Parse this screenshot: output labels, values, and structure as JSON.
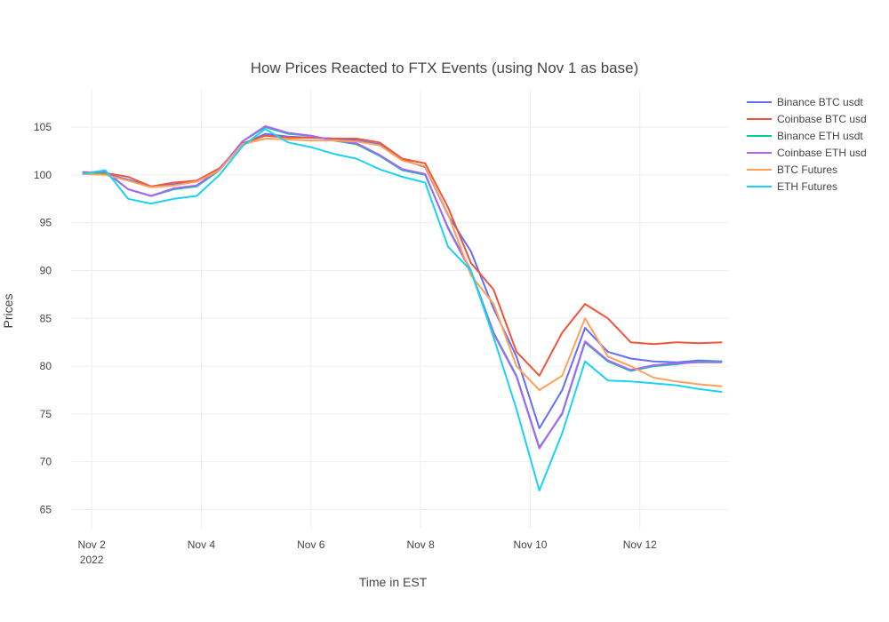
{
  "chart_data": {
    "type": "line",
    "title": "How Prices Reacted to FTX Events (using Nov 1 as base)",
    "xlabel": "Time in EST",
    "ylabel": "Prices",
    "xlim": [
      "2022-11-01T15:00",
      "2022-11-13T15:00"
    ],
    "ylim": [
      63,
      109
    ],
    "x_ticks": [
      {
        "value": "2022-11-02",
        "label": "Nov 2",
        "sublabel": "2022"
      },
      {
        "value": "2022-11-04",
        "label": "Nov 4",
        "sublabel": ""
      },
      {
        "value": "2022-11-06",
        "label": "Nov 6",
        "sublabel": ""
      },
      {
        "value": "2022-11-08",
        "label": "Nov 8",
        "sublabel": ""
      },
      {
        "value": "2022-11-10",
        "label": "Nov 10",
        "sublabel": ""
      },
      {
        "value": "2022-11-12",
        "label": "Nov 12",
        "sublabel": ""
      }
    ],
    "y_ticks": [
      65,
      70,
      75,
      80,
      85,
      90,
      95,
      100,
      105
    ],
    "grid": true,
    "legend_position": "top-right",
    "x": [
      "2022-11-01T20:00",
      "2022-11-02T06:00",
      "2022-11-02T16:00",
      "2022-11-03T02:00",
      "2022-11-03T12:00",
      "2022-11-03T22:00",
      "2022-11-04T08:00",
      "2022-11-04T18:00",
      "2022-11-05T04:00",
      "2022-11-05T14:00",
      "2022-11-06T00:00",
      "2022-11-06T10:00",
      "2022-11-06T20:00",
      "2022-11-07T06:00",
      "2022-11-07T16:00",
      "2022-11-08T02:00",
      "2022-11-08T12:00",
      "2022-11-08T22:00",
      "2022-11-09T08:00",
      "2022-11-09T18:00",
      "2022-11-10T04:00",
      "2022-11-10T14:00",
      "2022-11-11T00:00",
      "2022-11-11T10:00",
      "2022-11-11T20:00",
      "2022-11-12T06:00",
      "2022-11-12T16:00",
      "2022-11-13T02:00",
      "2022-11-13T12:00"
    ],
    "series": [
      {
        "name": "Binance BTC usdt",
        "color": "#636efa",
        "values": [
          100.2,
          100.1,
          99.5,
          98.8,
          99.0,
          99.4,
          100.6,
          103.2,
          104.3,
          104.0,
          103.9,
          103.8,
          103.6,
          103.2,
          101.6,
          100.8,
          95.8,
          92.0,
          86.0,
          81.0,
          73.5,
          77.5,
          84.0,
          81.5,
          80.8,
          80.5,
          80.4,
          80.6,
          80.5
        ]
      },
      {
        "name": "Coinbase BTC usd",
        "color": "#ef553b",
        "values": [
          100.3,
          100.2,
          99.8,
          98.8,
          99.2,
          99.4,
          100.7,
          103.3,
          104.1,
          103.9,
          103.9,
          103.8,
          103.8,
          103.4,
          101.7,
          101.2,
          96.6,
          90.8,
          88.0,
          81.5,
          79.0,
          83.5,
          86.5,
          85.0,
          82.5,
          82.3,
          82.5,
          82.4,
          82.5
        ]
      },
      {
        "name": "Binance ETH usdt",
        "color": "#00cc96",
        "values": [
          100.2,
          100.3,
          98.5,
          97.8,
          98.5,
          98.8,
          100.5,
          103.5,
          105.0,
          104.3,
          104.1,
          103.6,
          103.2,
          102.0,
          100.5,
          100.0,
          94.5,
          90.0,
          83.5,
          79.0,
          71.5,
          75.0,
          82.5,
          80.5,
          79.5,
          80.0,
          80.2,
          80.5,
          80.5
        ]
      },
      {
        "name": "Coinbase ETH usd",
        "color": "#ab63fa",
        "values": [
          100.2,
          100.4,
          98.5,
          97.8,
          98.6,
          98.9,
          100.6,
          103.5,
          105.1,
          104.4,
          104.1,
          103.6,
          103.3,
          102.1,
          100.6,
          100.1,
          94.4,
          89.9,
          83.4,
          78.9,
          71.4,
          75.1,
          82.6,
          80.6,
          79.6,
          80.1,
          80.3,
          80.4,
          80.4
        ]
      },
      {
        "name": "BTC Futures",
        "color": "#ffa15a",
        "values": [
          100.1,
          100.0,
          99.4,
          98.7,
          98.9,
          99.3,
          100.5,
          103.2,
          103.8,
          103.7,
          103.6,
          103.6,
          103.5,
          103.1,
          101.5,
          100.9,
          95.9,
          89.5,
          86.5,
          80.0,
          77.5,
          79.0,
          85.0,
          81.0,
          80.0,
          78.8,
          78.4,
          78.1,
          77.9
        ]
      },
      {
        "name": "ETH Futures",
        "color": "#19d3f3",
        "values": [
          100.1,
          100.5,
          97.5,
          97.0,
          97.5,
          97.8,
          100.0,
          103.0,
          104.8,
          103.4,
          102.9,
          102.2,
          101.7,
          100.6,
          99.8,
          99.2,
          92.5,
          90.0,
          83.0,
          75.5,
          67.0,
          73.0,
          80.5,
          78.5,
          78.4,
          78.2,
          78.0,
          77.6,
          77.3
        ]
      }
    ]
  }
}
